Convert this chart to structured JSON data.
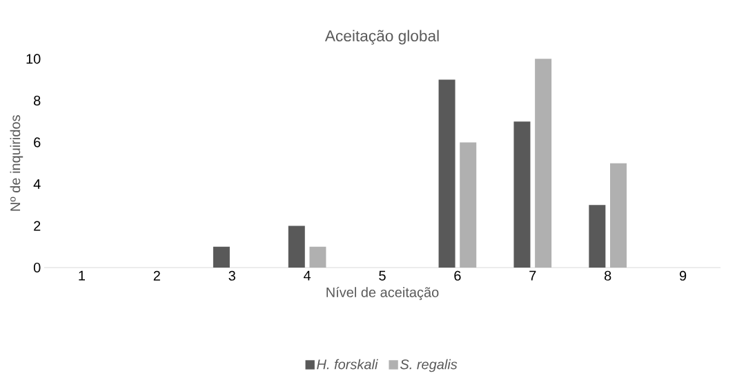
{
  "chart_data": {
    "type": "bar",
    "title": "Aceitação global",
    "xlabel": "Nível de aceitação",
    "ylabel": "Nº de inquiridos",
    "categories": [
      "1",
      "2",
      "3",
      "4",
      "5",
      "6",
      "7",
      "8",
      "9"
    ],
    "series": [
      {
        "name": "H. forskali",
        "color": "#595959",
        "values": [
          0,
          0,
          1,
          2,
          0,
          9,
          7,
          3,
          0
        ]
      },
      {
        "name": "S. regalis",
        "color": "#b0b0b0",
        "values": [
          0,
          0,
          0,
          1,
          0,
          6,
          10,
          5,
          0
        ]
      }
    ],
    "ylim": [
      0,
      10
    ],
    "yticks": [
      0,
      2,
      4,
      6,
      8,
      10
    ],
    "grid": false,
    "legend": "bottom"
  }
}
